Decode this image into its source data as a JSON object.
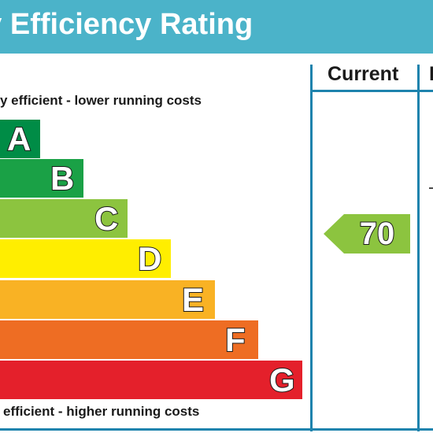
{
  "header": {
    "title": "gy Efficiency Rating"
  },
  "columns": {
    "current_label": "Current",
    "potential_label": "P"
  },
  "notes": {
    "top": "y efficient - lower running costs",
    "bottom": "efficient - higher running costs"
  },
  "chart_data": {
    "type": "bar",
    "categories": [
      "A",
      "B",
      "C",
      "D",
      "E",
      "F",
      "G"
    ],
    "colors": [
      "#008c46",
      "#1aa146",
      "#8cc43f",
      "#ffee00",
      "#f9b224",
      "#ee6d23",
      "#e4202b"
    ],
    "current": {
      "value": 70,
      "band": "C",
      "color": "#8cc43f"
    }
  }
}
